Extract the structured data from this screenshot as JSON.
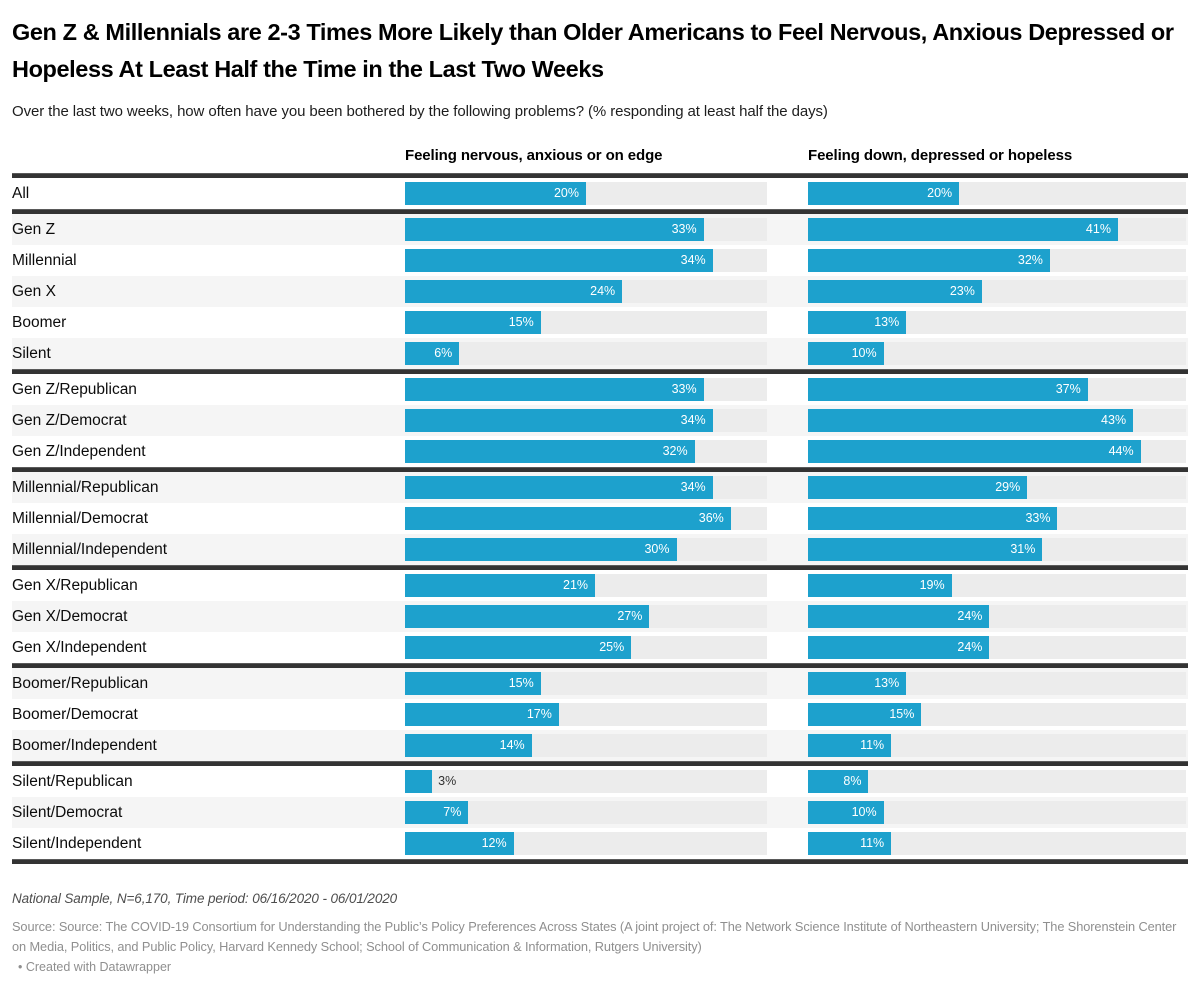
{
  "chart_data": {
    "type": "bar",
    "orientation": "horizontal",
    "title": "Gen Z & Millennials are 2-3 Times More Likely than Older Americans to Feel Nervous, Anxious Depressed or Hopeless At Least Half the Time in the Last Two Weeks",
    "subtitle": "Over the last two weeks, how often have you been bothered by the following problems? (% responding at least half the days)",
    "unit": "%",
    "grid": false,
    "value_labels": "inside-end",
    "categories": [
      "All",
      "Gen Z",
      "Millennial",
      "Gen X",
      "Boomer",
      "Silent",
      "Gen Z/Republican",
      "Gen Z/Democrat",
      "Gen Z/Independent",
      "Millennial/Republican",
      "Millennial/Democrat",
      "Millennial/Independent",
      "Gen X/Republican",
      "Gen X/Democrat",
      "Gen X/Independent",
      "Boomer/Republican",
      "Boomer/Democrat",
      "Boomer/Independent",
      "Silent/Republican",
      "Silent/Democrat",
      "Silent/Independent"
    ],
    "series": [
      {
        "name": "Feeling nervous, anxious or on edge",
        "axis_max": 40,
        "values": [
          20,
          33,
          34,
          24,
          15,
          6,
          33,
          34,
          32,
          34,
          36,
          30,
          21,
          27,
          25,
          15,
          17,
          14,
          3,
          7,
          12
        ]
      },
      {
        "name": "Feeling down, depressed or hopeless",
        "axis_max": 50,
        "values": [
          20,
          41,
          32,
          23,
          13,
          10,
          37,
          43,
          44,
          29,
          33,
          31,
          19,
          24,
          24,
          13,
          15,
          11,
          8,
          10,
          11
        ]
      }
    ],
    "section_breaks_after": [
      0,
      5,
      8,
      11,
      14,
      17,
      20
    ]
  },
  "colors": {
    "bar": "#1da1cd",
    "track": "#ececec",
    "row_stripe": "#f5f5f5",
    "separator": "#333333",
    "label_inside": "#ffffff",
    "label_outside": "#333333"
  },
  "footer": {
    "notes": "National Sample, N=6,170, Time period: 06/16/2020 - 06/01/2020",
    "source": "Source: Source: The COVID-19 Consortium for Understanding the Public’s Policy Preferences Across States (A joint project of: The Network Science Institute of Northeastern University; The Shorenstein Center on Media, Politics, and Public Policy, Harvard Kennedy School; School of Communication & Information, Rutgers University)",
    "credit": "• Created with Datawrapper"
  }
}
